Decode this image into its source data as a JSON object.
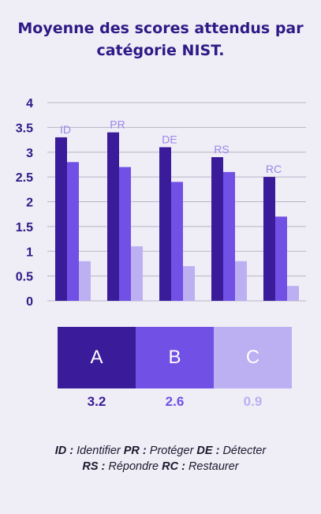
{
  "title_line1": "Moyenne des scores attendus par",
  "title_line2": "catégorie NIST.",
  "chart_data": {
    "type": "bar",
    "categories": [
      "ID",
      "PR",
      "DE",
      "RS",
      "RC"
    ],
    "series": [
      {
        "name": "A",
        "values": [
          3.3,
          3.4,
          3.1,
          2.9,
          2.5
        ],
        "color": "#3a1b9a"
      },
      {
        "name": "B",
        "values": [
          2.8,
          2.7,
          2.4,
          2.6,
          1.7
        ],
        "color": "#7150e6"
      },
      {
        "name": "C",
        "values": [
          0.8,
          1.1,
          0.7,
          0.8,
          0.3
        ],
        "color": "#bcaff2"
      }
    ],
    "ylim": [
      0,
      4
    ],
    "yticks": [
      "0",
      "0.5",
      "1",
      "1.5",
      "2",
      "2.5",
      "3",
      "3.5",
      "4"
    ],
    "grid": true,
    "category_label_color": "#9b87e8"
  },
  "legend": [
    {
      "label": "A",
      "avg": "3.2",
      "color": "#3a1b9a",
      "avg_color": "#3a1b9a"
    },
    {
      "label": "B",
      "avg": "2.6",
      "color": "#7150e6",
      "avg_color": "#7150e6"
    },
    {
      "label": "C",
      "avg": "0.9",
      "color": "#bcaff2",
      "avg_color": "#bcaff2"
    }
  ],
  "footnote": {
    "line1": [
      {
        "abbr": "ID :",
        "text": " Identifier "
      },
      {
        "abbr": "PR :",
        "text": " Protéger "
      },
      {
        "abbr": "DE :",
        "text": " Détecter"
      }
    ],
    "line2": [
      {
        "abbr": "RS :",
        "text": " Répondre "
      },
      {
        "abbr": "RC :",
        "text": " Restaurer"
      }
    ]
  }
}
